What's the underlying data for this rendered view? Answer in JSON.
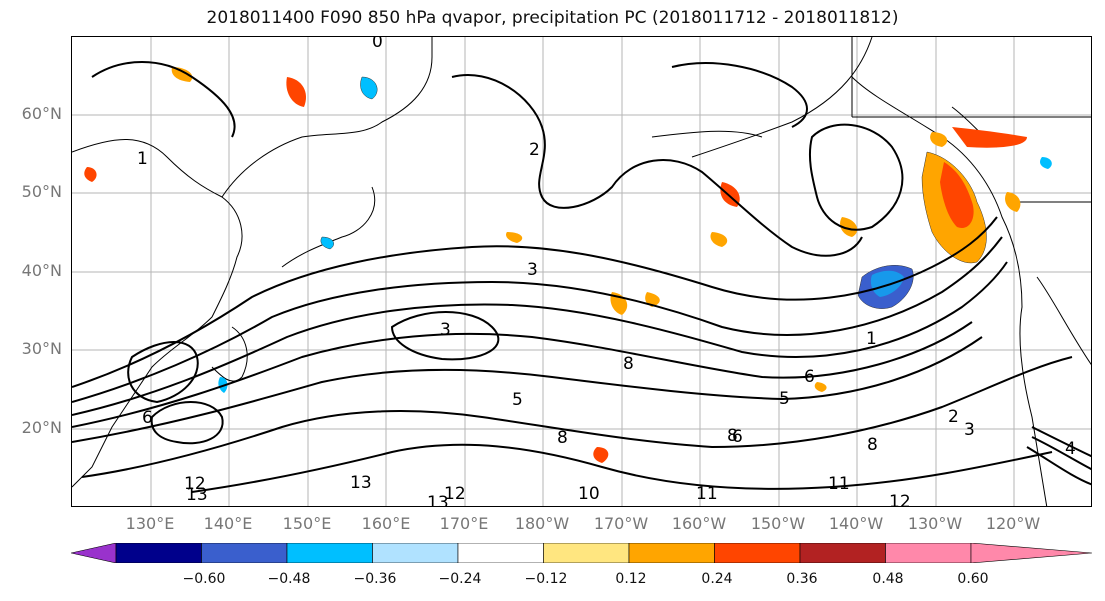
{
  "title": "2018011400 F090 850 hPa qvapor, precipitation PC (2018011712 - 2018011812)",
  "map": {
    "lat_labels": [
      "60°N",
      "50°N",
      "40°N",
      "30°N",
      "20°N"
    ],
    "lon_labels": [
      "130°E",
      "140°E",
      "150°E",
      "160°E",
      "170°E",
      "180°W",
      "170°W",
      "160°W",
      "150°W",
      "140°W",
      "130°W",
      "120°W"
    ],
    "contour_labels": [
      "0",
      "2",
      "3",
      "3",
      "1",
      "8",
      "5",
      "6",
      "12",
      "13",
      "12",
      "13",
      "13",
      "10",
      "11",
      "11",
      "12",
      "4",
      "8",
      "6",
      "5",
      "3",
      "2",
      "8",
      "3",
      "6",
      "1"
    ]
  },
  "colorbar": {
    "colors": [
      "#9932CC",
      "#00008B",
      "#3A5FCD",
      "#00BFFF",
      "#B0E2FF",
      "#FFFFFF",
      "#FFE680",
      "#FFA500",
      "#FF4500",
      "#B22222",
      "#FF88AA"
    ],
    "ticks": [
      "−0.60",
      "−0.48",
      "−0.36",
      "−0.24",
      "−0.12",
      "0.12",
      "0.24",
      "0.36",
      "0.48",
      "0.60"
    ]
  }
}
